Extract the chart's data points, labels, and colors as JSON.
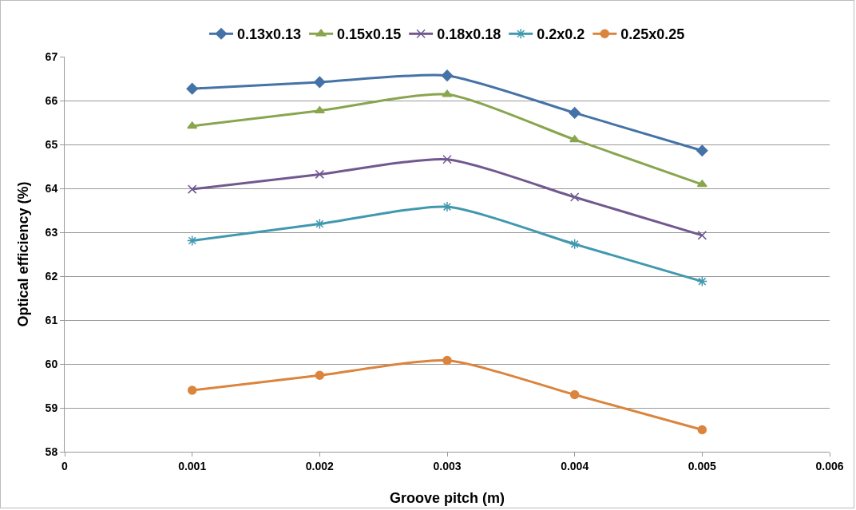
{
  "chart_data": {
    "type": "line",
    "xlabel": "Groove pitch (m)",
    "ylabel": "Optical efficiency (%)",
    "x": [
      0.001,
      0.002,
      0.003,
      0.004,
      0.005
    ],
    "series": [
      {
        "name": "0.13x0.13",
        "color": "#4572a7",
        "marker": "diamond",
        "values": [
          66.27,
          66.42,
          66.57,
          65.72,
          64.86
        ]
      },
      {
        "name": "0.15x0.15",
        "color": "#89a54e",
        "marker": "triangle",
        "values": [
          65.42,
          65.77,
          66.14,
          65.11,
          64.09
        ]
      },
      {
        "name": "0.18x0.18",
        "color": "#71588f",
        "marker": "cross",
        "values": [
          63.98,
          64.32,
          64.66,
          63.8,
          62.93
        ]
      },
      {
        "name": "0.2x0.2",
        "color": "#4198af",
        "marker": "cross",
        "values": [
          62.81,
          63.19,
          63.58,
          62.73,
          61.88
        ]
      },
      {
        "name": "0.25x0.25",
        "color": "#db843d",
        "marker": "circle",
        "values": [
          59.4,
          59.74,
          60.08,
          59.3,
          58.5
        ]
      }
    ],
    "xlim": [
      0,
      0.006
    ],
    "xticks": [
      0,
      0.001,
      0.002,
      0.003,
      0.004,
      0.005,
      0.006
    ],
    "ylim": [
      58,
      67
    ],
    "yticks": [
      58,
      59,
      60,
      61,
      62,
      63,
      64,
      65,
      66,
      67
    ],
    "grid": "y",
    "legend": "top",
    "line_style": "solid"
  }
}
